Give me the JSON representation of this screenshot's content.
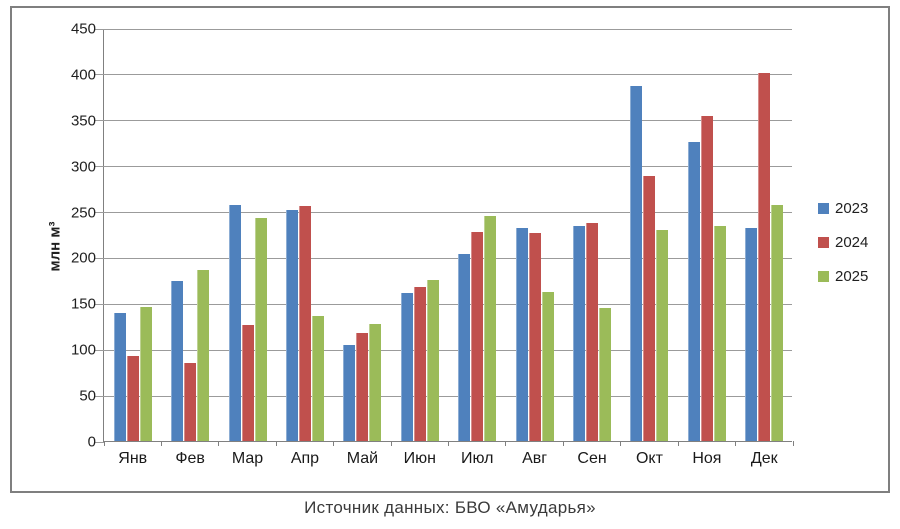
{
  "chart_data": {
    "type": "bar",
    "title": "",
    "categories": [
      "Янв",
      "Фев",
      "Мар",
      "Апр",
      "Май",
      "Июн",
      "Июл",
      "Авг",
      "Сен",
      "Окт",
      "Ноя",
      "Дек"
    ],
    "series": [
      {
        "name": "2023",
        "color": "#4F81BD",
        "values": [
          140,
          174,
          257,
          252,
          105,
          161,
          204,
          232,
          234,
          387,
          326,
          232
        ]
      },
      {
        "name": "2024",
        "color": "#C0504D",
        "values": [
          93,
          85,
          126,
          256,
          118,
          168,
          228,
          227,
          238,
          289,
          354,
          401
        ]
      },
      {
        "name": "2025",
        "color": "#9BBB59",
        "values": [
          146,
          186,
          243,
          136,
          128,
          175,
          245,
          162,
          145,
          230,
          234,
          257
        ]
      }
    ],
    "xlabel": "",
    "ylabel": "млн м³",
    "ylim": [
      0,
      450
    ],
    "ytick_step": 50,
    "grid": true,
    "legend_position": "right"
  },
  "caption": "Источник данных: БВО «Амударья»"
}
